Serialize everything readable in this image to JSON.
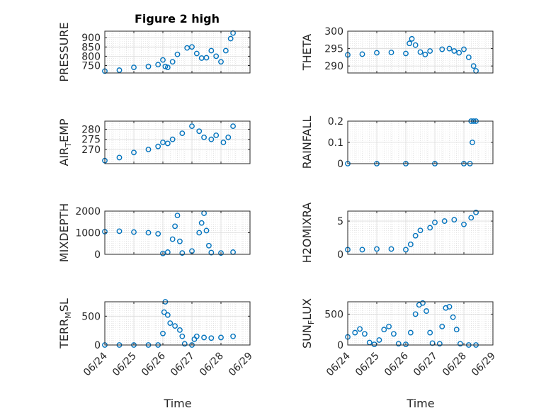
{
  "figure": {
    "title": "Figure 2 high",
    "background": "#ffffff",
    "marker_color": "#0072bd"
  },
  "x_axis": {
    "label": "Time",
    "range": [
      "2014-06-24",
      "2014-06-29"
    ],
    "ticks": [
      {
        "date": "2014-06-24",
        "label": "06/24"
      },
      {
        "date": "2014-06-25",
        "label": "06/25"
      },
      {
        "date": "2014-06-26",
        "label": "06/26"
      },
      {
        "date": "2014-06-27",
        "label": "06/27"
      },
      {
        "date": "2014-06-28",
        "label": "06/28"
      },
      {
        "date": "2014-06-29",
        "label": "06/29"
      }
    ]
  },
  "chart_data": [
    {
      "type": "scatter",
      "id": "pressure",
      "ylabel": "PRESSURE",
      "ylim": [
        710,
        935
      ],
      "yticks": [
        750,
        800,
        850,
        900
      ],
      "grid": true,
      "points": [
        [
          "2014-06-24 00:00",
          720
        ],
        [
          "2014-06-24 12:00",
          725
        ],
        [
          "2014-06-25 00:00",
          740
        ],
        [
          "2014-06-25 12:00",
          745
        ],
        [
          "2014-06-25 20:00",
          755
        ],
        [
          "2014-06-26 00:00",
          780
        ],
        [
          "2014-06-26 02:00",
          745
        ],
        [
          "2014-06-26 04:00",
          740
        ],
        [
          "2014-06-26 08:00",
          770
        ],
        [
          "2014-06-26 12:00",
          810
        ],
        [
          "2014-06-26 20:00",
          845
        ],
        [
          "2014-06-27 00:00",
          850
        ],
        [
          "2014-06-27 04:00",
          815
        ],
        [
          "2014-06-27 08:00",
          790
        ],
        [
          "2014-06-27 12:00",
          792
        ],
        [
          "2014-06-27 16:00",
          830
        ],
        [
          "2014-06-27 20:00",
          800
        ],
        [
          "2014-06-28 00:00",
          770
        ],
        [
          "2014-06-28 04:00",
          830
        ],
        [
          "2014-06-28 08:00",
          895
        ],
        [
          "2014-06-28 10:00",
          925
        ]
      ]
    },
    {
      "type": "scatter",
      "id": "theta",
      "ylabel": "THETA",
      "ylim": [
        288,
        300
      ],
      "yticks": [
        290,
        295,
        300
      ],
      "grid": true,
      "points": [
        [
          "2014-06-24 00:00",
          293.2
        ],
        [
          "2014-06-24 12:00",
          293.4
        ],
        [
          "2014-06-25 00:00",
          293.8
        ],
        [
          "2014-06-25 12:00",
          293.9
        ],
        [
          "2014-06-26 00:00",
          293.6
        ],
        [
          "2014-06-26 03:00",
          296.5
        ],
        [
          "2014-06-26 05:00",
          297.8
        ],
        [
          "2014-06-26 08:00",
          296
        ],
        [
          "2014-06-26 12:00",
          294
        ],
        [
          "2014-06-26 16:00",
          293.3
        ],
        [
          "2014-06-26 20:00",
          294.3
        ],
        [
          "2014-06-27 06:00",
          294.8
        ],
        [
          "2014-06-27 12:00",
          295
        ],
        [
          "2014-06-27 16:00",
          294.3
        ],
        [
          "2014-06-27 20:00",
          293.8
        ],
        [
          "2014-06-28 00:00",
          294.8
        ],
        [
          "2014-06-28 04:00",
          292.5
        ],
        [
          "2014-06-28 08:00",
          290
        ],
        [
          "2014-06-28 10:00",
          288.6
        ]
      ]
    },
    {
      "type": "scatter",
      "id": "air_temp",
      "ylabel": "AIR",
      "ylabel_sub": "T",
      "ylabel_rest": "EMP",
      "ylim": [
        263,
        284
      ],
      "yticks": [
        270,
        275,
        280
      ],
      "grid": true,
      "points": [
        [
          "2014-06-24 00:00",
          264.5
        ],
        [
          "2014-06-24 12:00",
          266
        ],
        [
          "2014-06-25 00:00",
          268.5
        ],
        [
          "2014-06-25 12:00",
          270
        ],
        [
          "2014-06-25 20:00",
          271.5
        ],
        [
          "2014-06-26 00:00",
          273.5
        ],
        [
          "2014-06-26 04:00",
          273
        ],
        [
          "2014-06-26 08:00",
          275
        ],
        [
          "2014-06-26 16:00",
          278
        ],
        [
          "2014-06-27 00:00",
          281.5
        ],
        [
          "2014-06-27 06:00",
          279
        ],
        [
          "2014-06-27 10:00",
          276
        ],
        [
          "2014-06-27 16:00",
          275
        ],
        [
          "2014-06-27 20:00",
          277
        ],
        [
          "2014-06-28 02:00",
          273.5
        ],
        [
          "2014-06-28 06:00",
          276
        ],
        [
          "2014-06-28 10:00",
          281.5
        ]
      ]
    },
    {
      "type": "scatter",
      "id": "rainfall",
      "ylabel": "RAINFALL",
      "ylim": [
        0,
        0.2
      ],
      "yticks": [
        0,
        0.1,
        0.2
      ],
      "grid": true,
      "points": [
        [
          "2014-06-24 00:00",
          0
        ],
        [
          "2014-06-25 00:00",
          0
        ],
        [
          "2014-06-26 00:00",
          0
        ],
        [
          "2014-06-27 00:00",
          0
        ],
        [
          "2014-06-28 00:00",
          0
        ],
        [
          "2014-06-28 05:00",
          0
        ],
        [
          "2014-06-28 06:00",
          0.2
        ],
        [
          "2014-06-28 07:00",
          0.1
        ],
        [
          "2014-06-28 08:00",
          0.2
        ],
        [
          "2014-06-28 10:00",
          0.2
        ]
      ]
    },
    {
      "type": "scatter",
      "id": "mixdepth",
      "ylabel": "MIXDEPTH",
      "ylim": [
        0,
        2000
      ],
      "yticks": [
        0,
        1000,
        2000
      ],
      "grid": true,
      "points": [
        [
          "2014-06-24 00:00",
          1050
        ],
        [
          "2014-06-24 12:00",
          1070
        ],
        [
          "2014-06-25 00:00",
          1030
        ],
        [
          "2014-06-25 12:00",
          1000
        ],
        [
          "2014-06-25 20:00",
          950
        ],
        [
          "2014-06-26 00:00",
          40
        ],
        [
          "2014-06-26 04:00",
          100
        ],
        [
          "2014-06-26 08:00",
          700
        ],
        [
          "2014-06-26 10:00",
          1300
        ],
        [
          "2014-06-26 12:00",
          1800
        ],
        [
          "2014-06-26 14:00",
          600
        ],
        [
          "2014-06-26 16:00",
          60
        ],
        [
          "2014-06-27 00:00",
          150
        ],
        [
          "2014-06-27 06:00",
          1000
        ],
        [
          "2014-06-27 08:00",
          1450
        ],
        [
          "2014-06-27 10:00",
          1900
        ],
        [
          "2014-06-27 12:00",
          1100
        ],
        [
          "2014-06-27 14:00",
          400
        ],
        [
          "2014-06-27 16:00",
          80
        ],
        [
          "2014-06-28 00:00",
          60
        ],
        [
          "2014-06-28 10:00",
          100
        ]
      ]
    },
    {
      "type": "scatter",
      "id": "h2omixra",
      "ylabel": "H2OMIXRA",
      "ylim": [
        0,
        6.5
      ],
      "yticks": [
        0,
        5
      ],
      "grid": true,
      "points": [
        [
          "2014-06-24 00:00",
          0.7
        ],
        [
          "2014-06-24 12:00",
          0.7
        ],
        [
          "2014-06-25 00:00",
          0.8
        ],
        [
          "2014-06-25 12:00",
          0.8
        ],
        [
          "2014-06-26 00:00",
          0.7
        ],
        [
          "2014-06-26 04:00",
          1.5
        ],
        [
          "2014-06-26 08:00",
          2.8
        ],
        [
          "2014-06-26 12:00",
          3.6
        ],
        [
          "2014-06-26 20:00",
          4
        ],
        [
          "2014-06-27 00:00",
          4.8
        ],
        [
          "2014-06-27 08:00",
          5
        ],
        [
          "2014-06-27 16:00",
          5.2
        ],
        [
          "2014-06-28 00:00",
          4.5
        ],
        [
          "2014-06-28 06:00",
          5.5
        ],
        [
          "2014-06-28 10:00",
          6.3
        ]
      ]
    },
    {
      "type": "scatter",
      "id": "terr_msl",
      "ylabel": "TERR",
      "ylabel_sub": "M",
      "ylabel_rest": "SL",
      "ylim": [
        0,
        750
      ],
      "yticks": [
        0,
        500
      ],
      "grid": true,
      "points": [
        [
          "2014-06-24 00:00",
          0
        ],
        [
          "2014-06-24 12:00",
          0
        ],
        [
          "2014-06-25 00:00",
          0
        ],
        [
          "2014-06-25 12:00",
          0
        ],
        [
          "2014-06-25 20:00",
          0
        ],
        [
          "2014-06-26 00:00",
          200
        ],
        [
          "2014-06-26 01:00",
          570
        ],
        [
          "2014-06-26 02:00",
          750
        ],
        [
          "2014-06-26 04:00",
          520
        ],
        [
          "2014-06-26 06:00",
          380
        ],
        [
          "2014-06-26 10:00",
          330
        ],
        [
          "2014-06-26 14:00",
          260
        ],
        [
          "2014-06-26 16:00",
          150
        ],
        [
          "2014-06-26 18:00",
          20
        ],
        [
          "2014-06-27 00:00",
          0
        ],
        [
          "2014-06-27 02:00",
          100
        ],
        [
          "2014-06-27 04:00",
          150
        ],
        [
          "2014-06-27 10:00",
          130
        ],
        [
          "2014-06-27 16:00",
          120
        ],
        [
          "2014-06-28 00:00",
          130
        ],
        [
          "2014-06-28 10:00",
          150
        ]
      ]
    },
    {
      "type": "scatter",
      "id": "sun_flux",
      "ylabel": "SUN",
      "ylabel_sub": "F",
      "ylabel_rest": "LUX",
      "ylim": [
        0,
        700
      ],
      "yticks": [
        0,
        500
      ],
      "grid": true,
      "points": [
        [
          "2014-06-24 00:00",
          130
        ],
        [
          "2014-06-24 06:00",
          200
        ],
        [
          "2014-06-24 10:00",
          260
        ],
        [
          "2014-06-24 14:00",
          180
        ],
        [
          "2014-06-24 18:00",
          40
        ],
        [
          "2014-06-24 22:00",
          10
        ],
        [
          "2014-06-25 02:00",
          80
        ],
        [
          "2014-06-25 06:00",
          250
        ],
        [
          "2014-06-25 10:00",
          300
        ],
        [
          "2014-06-25 14:00",
          180
        ],
        [
          "2014-06-25 18:00",
          20
        ],
        [
          "2014-06-26 00:00",
          10
        ],
        [
          "2014-06-26 04:00",
          200
        ],
        [
          "2014-06-26 08:00",
          500
        ],
        [
          "2014-06-26 11:00",
          650
        ],
        [
          "2014-06-26 14:00",
          680
        ],
        [
          "2014-06-26 17:00",
          550
        ],
        [
          "2014-06-26 20:00",
          200
        ],
        [
          "2014-06-26 22:00",
          30
        ],
        [
          "2014-06-27 04:00",
          20
        ],
        [
          "2014-06-27 06:00",
          300
        ],
        [
          "2014-06-27 09:00",
          600
        ],
        [
          "2014-06-27 12:00",
          620
        ],
        [
          "2014-06-27 15:00",
          450
        ],
        [
          "2014-06-27 18:00",
          250
        ],
        [
          "2014-06-27 21:00",
          20
        ],
        [
          "2014-06-28 04:00",
          0
        ],
        [
          "2014-06-28 10:00",
          0
        ]
      ]
    }
  ]
}
